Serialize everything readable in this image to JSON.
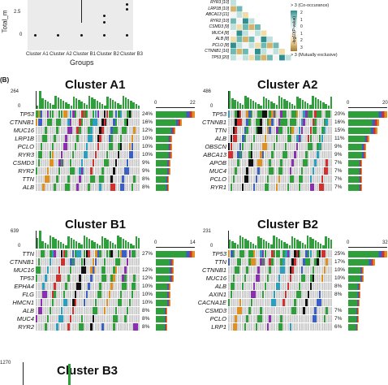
{
  "panelA": {
    "boxplot": {
      "ylabel": "Total_m",
      "xlabel": "Groups",
      "yticks": [
        "2.5",
        "0"
      ],
      "xticks": [
        "Cluster A1",
        "Cluster A2",
        "Cluster B1",
        "Cluster B2",
        "Cluster B3"
      ]
    },
    "heatmap": {
      "row_labels": [
        "RYR3 [10]",
        "LRP1B [10]",
        "ABCA13 [11]",
        "RYR2 [10]",
        "CSMD3 [9]",
        "MUC4 [8]",
        "ALB [8]",
        "PCLO [8]",
        "CTNNB1 [16]",
        "TP53 [20]"
      ],
      "legend_ticks": [
        "2",
        "1",
        "0",
        "1",
        "2",
        "3"
      ],
      "legend_top": "> 3 (Co-occurance)",
      "legend_axis": "-log10(P-value)",
      "legend_bottom": "> 3 (Mutually exclusive)",
      "colors": {
        "pos": "#2f8f8f",
        "neg": "#a57a30"
      }
    }
  },
  "panelB_label": "(B)",
  "clusters": [
    {
      "name": "Cluster A1",
      "tmb_max": "264",
      "bar_max": "22",
      "genes": [
        "TP53",
        "CTNNB1",
        "MUC16",
        "LRP1B",
        "PCLO",
        "RYR3",
        "CSMD3",
        "RYR2",
        "TTN",
        "ALB"
      ],
      "pcts": [
        "24%",
        "16%",
        "12%",
        "10%",
        "10%",
        "10%",
        "9%",
        "9%",
        "8%",
        "8%"
      ],
      "bars": [
        1.0,
        0.67,
        0.5,
        0.42,
        0.42,
        0.42,
        0.38,
        0.38,
        0.34,
        0.34
      ]
    },
    {
      "name": "Cluster A2",
      "tmb_max": "486",
      "bar_max": "20",
      "genes": [
        "TP53",
        "CTNNB1",
        "TTN",
        "ALB",
        "OBSCN",
        "ABCA13",
        "APOB",
        "MUC4",
        "PCLO",
        "RYR1"
      ],
      "pcts": [
        "20%",
        "16%",
        "15%",
        "11%",
        "9%",
        "9%",
        "7%",
        "7%",
        "7%",
        "7%"
      ],
      "bars": [
        1.0,
        0.8,
        0.75,
        0.55,
        0.45,
        0.45,
        0.35,
        0.35,
        0.35,
        0.35
      ]
    },
    {
      "name": "Cluster B1",
      "tmb_max": "639",
      "bar_max": "14",
      "genes": [
        "TTN",
        "CTNNB1",
        "MUC16",
        "TP53",
        "EPHA4",
        "FLG",
        "HMCN1",
        "ALB",
        "MUC4",
        "RYR2"
      ],
      "pcts": [
        "27%",
        "",
        "12%",
        "12%",
        "10%",
        "10%",
        "10%",
        "8%",
        "8%",
        "8%"
      ],
      "bars": [
        1.0,
        0.45,
        0.45,
        0.45,
        0.37,
        0.37,
        0.37,
        0.3,
        0.3,
        0.3
      ]
    },
    {
      "name": "Cluster B2",
      "tmb_max": "231",
      "bar_max": "32",
      "genes": [
        "TP53",
        "TTN",
        "CTNNB1",
        "MUC16",
        "ALB",
        "AXIN1",
        "CACNA1E",
        "CSMD3",
        "PCLO",
        "LRP1"
      ],
      "pcts": [
        "25%",
        "17%",
        "10%",
        "10%",
        "8%",
        "8%",
        "",
        "7%",
        "7%",
        "6%"
      ],
      "bars": [
        1.0,
        0.68,
        0.4,
        0.4,
        0.32,
        0.32,
        0.3,
        0.28,
        0.28,
        0.24
      ]
    }
  ],
  "cluster_b3": {
    "name": "Cluster B3",
    "tmb_max": "1270"
  }
}
